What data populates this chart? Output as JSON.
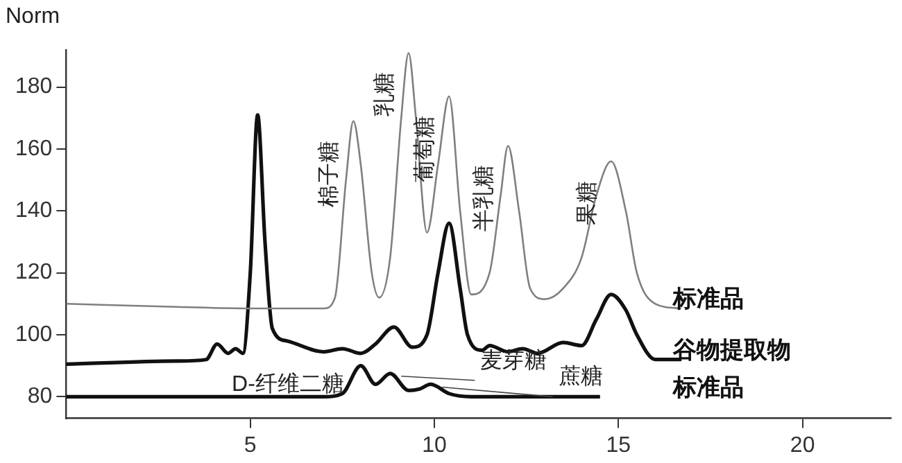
{
  "chart_data": {
    "type": "line",
    "ylabel": "Norm",
    "xlim": [
      0,
      22.4
    ],
    "xticks": [
      5,
      10,
      15,
      20
    ],
    "ylim": [
      73,
      192
    ],
    "yticks": [
      80,
      100,
      120,
      140,
      160,
      180
    ],
    "grid": false,
    "legend": false,
    "marker": "none",
    "line_style": "solid",
    "series": [
      {
        "name": "标准品",
        "color": "#7f7f7f",
        "x": [
          0,
          3,
          5,
          7,
          7.3,
          7.6,
          7.8,
          8.0,
          8.3,
          8.5,
          8.8,
          9.1,
          9.3,
          9.5,
          9.8,
          10.1,
          10.4,
          10.7,
          11.0,
          11.5,
          11.8,
          12.0,
          12.3,
          12.6,
          13.0,
          13.5,
          14.0,
          14.4,
          14.8,
          15.2,
          15.5,
          16.0,
          16.7
        ],
        "values": [
          110,
          109,
          108.5,
          108.5,
          112,
          150,
          169,
          155,
          120,
          112,
          125,
          170,
          191,
          170,
          133,
          155,
          177,
          140,
          113,
          120,
          145,
          161,
          140,
          115,
          111.5,
          115,
          125,
          145,
          156,
          140,
          120,
          110,
          108.5
        ]
      },
      {
        "name": "谷物提取物",
        "color": "#111111",
        "x": [
          0,
          3,
          3.8,
          4.1,
          4.4,
          4.6,
          4.8,
          5.0,
          5.2,
          5.4,
          5.6,
          6.0,
          7.0,
          7.5,
          8.0,
          8.4,
          8.9,
          9.4,
          9.8,
          10.1,
          10.4,
          10.7,
          10.9,
          11.3,
          11.5,
          12.0,
          12.4,
          12.8,
          13.5,
          14.0,
          14.4,
          14.8,
          15.2,
          15.5,
          16.0,
          16.7
        ],
        "values": [
          90.5,
          91.5,
          92,
          97,
          94,
          95.5,
          94,
          120,
          171,
          130,
          102,
          98,
          94.5,
          95.5,
          94,
          97,
          102.5,
          96,
          100,
          120,
          136,
          115,
          100,
          95,
          96.5,
          94.5,
          95.5,
          94,
          97.5,
          96.5,
          105,
          113,
          108,
          100,
          92,
          92
        ]
      },
      {
        "name": "标准品",
        "color": "#111111",
        "x": [
          0,
          7.0,
          7.5,
          8.0,
          8.4,
          8.8,
          9.3,
          9.6,
          9.9,
          10.4,
          11.0,
          14.5
        ],
        "values": [
          80,
          80,
          81,
          90,
          84,
          87.5,
          82,
          82.5,
          84,
          81,
          80,
          80
        ]
      }
    ],
    "annotations": [
      {
        "text": "棉子糖",
        "x": 7.8,
        "y": 169
      },
      {
        "text": "乳糖",
        "x": 9.3,
        "y": 191
      },
      {
        "text": "葡萄糖",
        "x": 10.4,
        "y": 177
      },
      {
        "text": "半乳糖",
        "x": 12.0,
        "y": 161
      },
      {
        "text": "果糖",
        "x": 14.8,
        "y": 156
      },
      {
        "text": "D-纤维二糖",
        "x": 8.0,
        "y": 90
      },
      {
        "text": "麦芽糖",
        "x": 8.8,
        "y": 87.5
      },
      {
        "text": "蔗糖",
        "x": 9.9,
        "y": 84
      }
    ]
  }
}
